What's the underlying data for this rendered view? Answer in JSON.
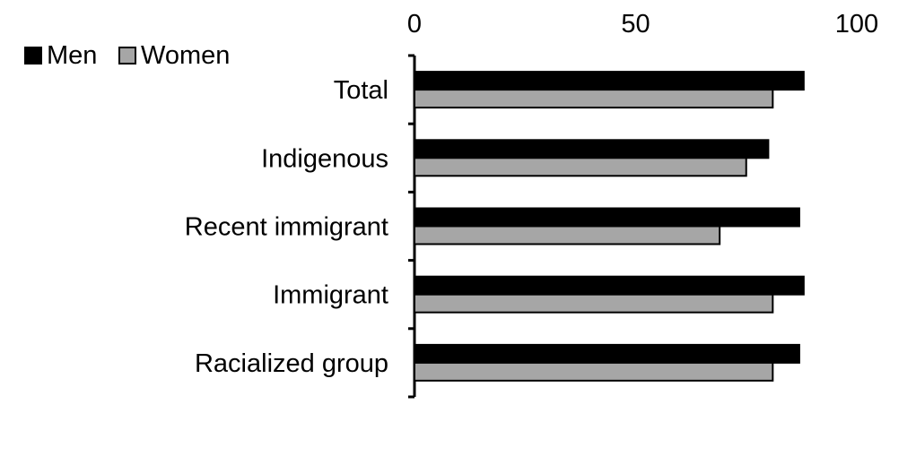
{
  "chart_data": {
    "type": "bar",
    "orientation": "horizontal",
    "title": "",
    "xlabel": "",
    "ylabel": "",
    "categories": [
      "Total",
      "Indigenous",
      "Recent immigrant",
      "Immigrant",
      "Racialized group"
    ],
    "series": [
      {
        "name": "Men",
        "color": "#000000",
        "values": [
          88,
          80,
          87,
          88,
          87
        ]
      },
      {
        "name": "Women",
        "color": "#a6a6a6",
        "values": [
          81,
          75,
          69,
          81,
          81
        ]
      }
    ],
    "xlim": [
      0,
      100
    ],
    "x_ticks": [
      "0",
      "50",
      "100"
    ],
    "x_axis_position": "top",
    "legend_position": "top-left",
    "grid": false
  }
}
